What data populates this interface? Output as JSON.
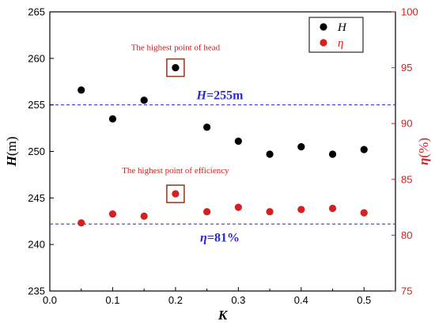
{
  "chart_data": {
    "type": "scatter",
    "x": [
      0.05,
      0.1,
      0.15,
      0.2,
      0.25,
      0.3,
      0.35,
      0.4,
      0.45,
      0.5
    ],
    "series": [
      {
        "name": "H",
        "axis": "left",
        "color": "#000000",
        "values": [
          256.6,
          253.5,
          255.5,
          259.0,
          252.6,
          251.1,
          249.7,
          250.5,
          249.7,
          250.2
        ]
      },
      {
        "name": "η",
        "axis": "right",
        "color": "#d42020",
        "values": [
          81.1,
          81.9,
          81.7,
          83.7,
          82.1,
          82.5,
          82.1,
          82.3,
          82.4,
          82.0
        ]
      }
    ],
    "xaxis": {
      "label_main": "K",
      "label_unit": "",
      "range": [
        0.0,
        0.55
      ],
      "ticks": [
        0.0,
        0.1,
        0.2,
        0.3,
        0.4,
        0.5
      ],
      "tick_labels": [
        "0.0",
        "0.1",
        "0.2",
        "0.3",
        "0.4",
        "0.5"
      ]
    },
    "yaxis_left": {
      "label_main": "H",
      "label_unit": "(m)",
      "range": [
        235,
        265
      ],
      "ticks": [
        235,
        240,
        245,
        250,
        255,
        260,
        265
      ],
      "tick_labels": [
        "235",
        "240",
        "245",
        "250",
        "255",
        "260",
        "265"
      ],
      "color": "#000000"
    },
    "yaxis_right": {
      "label_main": "η",
      "label_unit": "(%)",
      "range": [
        75,
        100
      ],
      "ticks": [
        75,
        80,
        85,
        90,
        95,
        100
      ],
      "tick_labels": [
        "75",
        "80",
        "85",
        "90",
        "95",
        "100"
      ],
      "color": "#d42020"
    },
    "reference_lines": [
      {
        "axis": "left",
        "value": 255,
        "color": "#2a2ad0",
        "label_main": "H",
        "label_rest": "=255m"
      },
      {
        "axis": "right",
        "value": 81,
        "color": "#2a2ad0",
        "label_main": "η",
        "label_rest": "=81%"
      }
    ],
    "annotations": [
      {
        "text": "The highest point of head",
        "series": 0,
        "point_index": 3,
        "color": "#cc2020",
        "box_color": "#8b3a1a"
      },
      {
        "text": "The highest point of efficiency",
        "series": 1,
        "point_index": 3,
        "color": "#cc2020",
        "box_color": "#8b3a1a"
      }
    ],
    "legend": {
      "position": "top-right",
      "entries": [
        {
          "label": "H",
          "color": "#000000"
        },
        {
          "label": "η",
          "color": "#d42020"
        }
      ]
    },
    "grid": false
  }
}
